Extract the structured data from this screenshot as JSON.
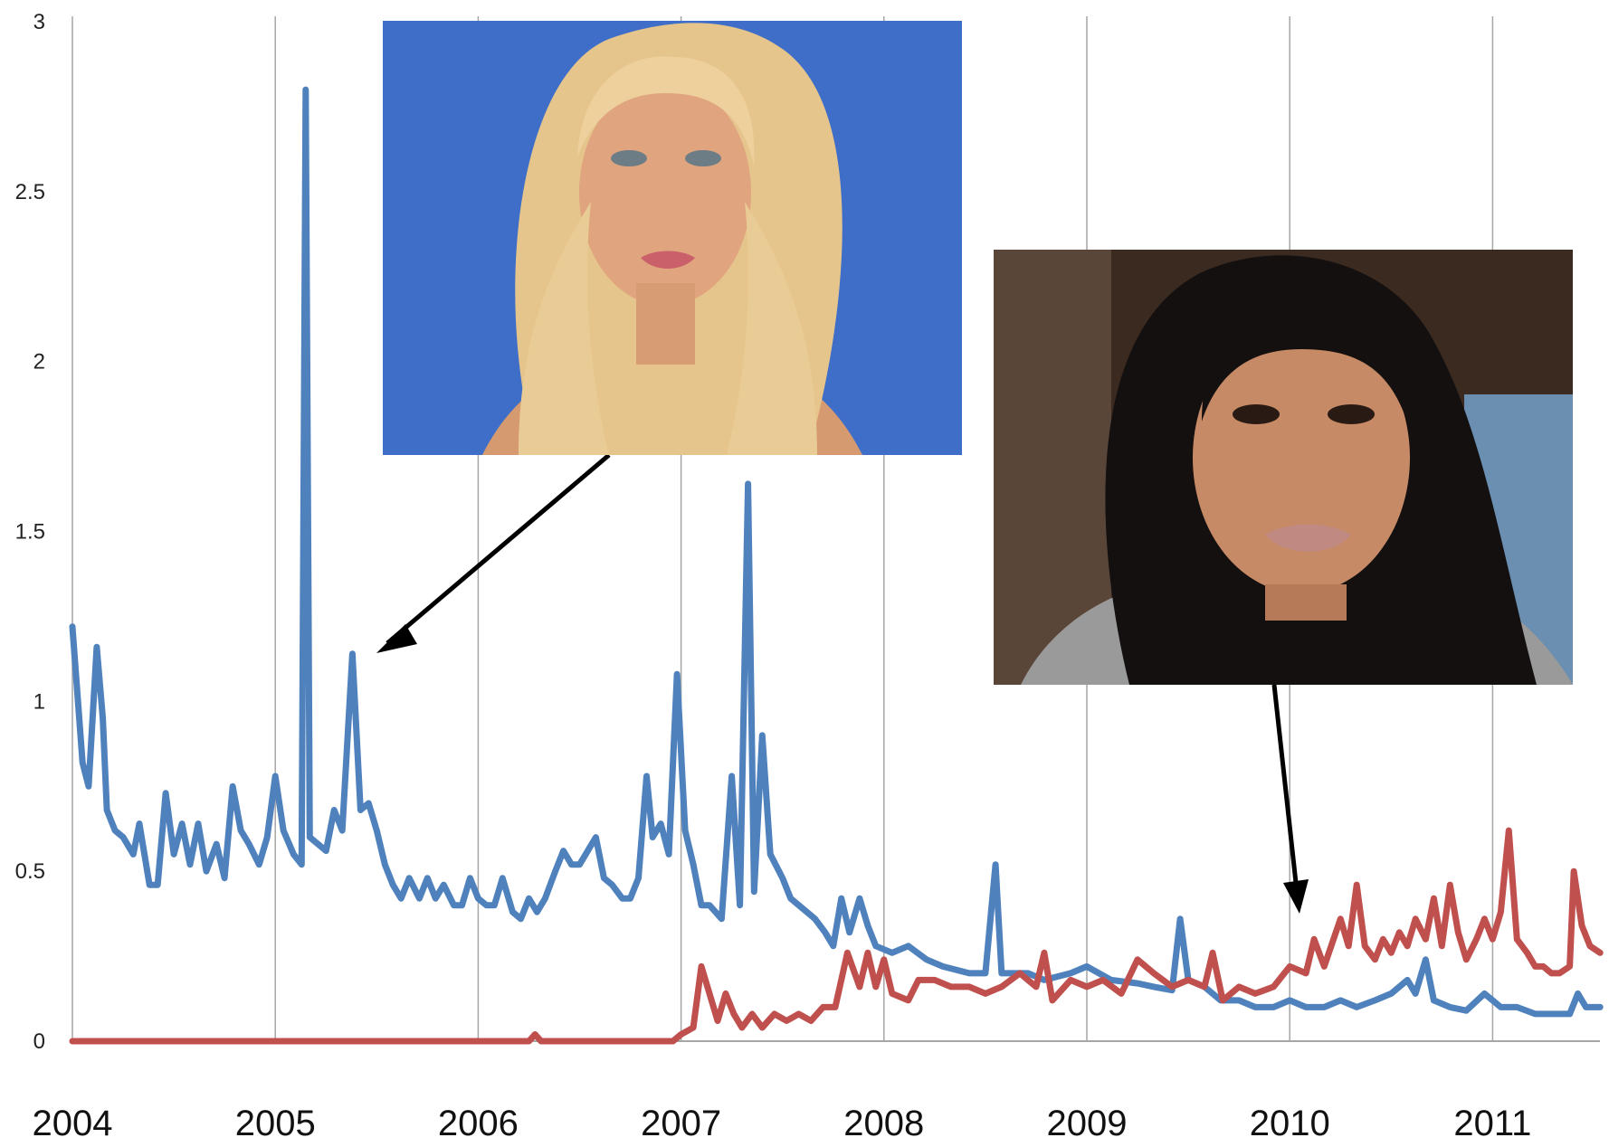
{
  "chart_data": {
    "type": "line",
    "ylim": [
      0,
      3
    ],
    "y_ticks": [
      "0",
      "0.5",
      "1",
      "1.5",
      "2",
      "2.5",
      "3"
    ],
    "x_ticks": [
      "2004",
      "2005",
      "2006",
      "2007",
      "2008",
      "2009",
      "2010",
      "2011"
    ],
    "xlim": [
      2004,
      2011.53
    ],
    "grid": "vertical",
    "series": [
      {
        "color": "#4f81bd",
        "points": [
          [
            2004.0,
            1.22
          ],
          [
            2004.05,
            0.82
          ],
          [
            2004.08,
            0.75
          ],
          [
            2004.12,
            1.16
          ],
          [
            2004.15,
            0.95
          ],
          [
            2004.17,
            0.68
          ],
          [
            2004.21,
            0.62
          ],
          [
            2004.25,
            0.6
          ],
          [
            2004.3,
            0.55
          ],
          [
            2004.33,
            0.64
          ],
          [
            2004.38,
            0.46
          ],
          [
            2004.42,
            0.46
          ],
          [
            2004.46,
            0.73
          ],
          [
            2004.5,
            0.55
          ],
          [
            2004.54,
            0.64
          ],
          [
            2004.58,
            0.52
          ],
          [
            2004.62,
            0.64
          ],
          [
            2004.66,
            0.5
          ],
          [
            2004.71,
            0.58
          ],
          [
            2004.75,
            0.48
          ],
          [
            2004.79,
            0.75
          ],
          [
            2004.83,
            0.62
          ],
          [
            2004.87,
            0.58
          ],
          [
            2004.92,
            0.52
          ],
          [
            2004.96,
            0.6
          ],
          [
            2005.0,
            0.78
          ],
          [
            2005.04,
            0.62
          ],
          [
            2005.09,
            0.55
          ],
          [
            2005.13,
            0.52
          ],
          [
            2005.15,
            2.8
          ],
          [
            2005.17,
            0.6
          ],
          [
            2005.21,
            0.58
          ],
          [
            2005.25,
            0.56
          ],
          [
            2005.29,
            0.68
          ],
          [
            2005.33,
            0.62
          ],
          [
            2005.38,
            1.14
          ],
          [
            2005.42,
            0.68
          ],
          [
            2005.46,
            0.7
          ],
          [
            2005.5,
            0.62
          ],
          [
            2005.54,
            0.52
          ],
          [
            2005.58,
            0.46
          ],
          [
            2005.62,
            0.42
          ],
          [
            2005.66,
            0.48
          ],
          [
            2005.71,
            0.42
          ],
          [
            2005.75,
            0.48
          ],
          [
            2005.79,
            0.42
          ],
          [
            2005.83,
            0.46
          ],
          [
            2005.88,
            0.4
          ],
          [
            2005.92,
            0.4
          ],
          [
            2005.96,
            0.48
          ],
          [
            2006.0,
            0.42
          ],
          [
            2006.04,
            0.4
          ],
          [
            2006.08,
            0.4
          ],
          [
            2006.12,
            0.48
          ],
          [
            2006.17,
            0.38
          ],
          [
            2006.21,
            0.36
          ],
          [
            2006.25,
            0.42
          ],
          [
            2006.29,
            0.38
          ],
          [
            2006.33,
            0.42
          ],
          [
            2006.38,
            0.5
          ],
          [
            2006.42,
            0.56
          ],
          [
            2006.46,
            0.52
          ],
          [
            2006.5,
            0.52
          ],
          [
            2006.54,
            0.56
          ],
          [
            2006.58,
            0.6
          ],
          [
            2006.62,
            0.48
          ],
          [
            2006.66,
            0.46
          ],
          [
            2006.71,
            0.42
          ],
          [
            2006.75,
            0.42
          ],
          [
            2006.79,
            0.48
          ],
          [
            2006.83,
            0.78
          ],
          [
            2006.86,
            0.6
          ],
          [
            2006.9,
            0.64
          ],
          [
            2006.94,
            0.55
          ],
          [
            2006.98,
            1.08
          ],
          [
            2007.02,
            0.62
          ],
          [
            2007.06,
            0.52
          ],
          [
            2007.1,
            0.4
          ],
          [
            2007.14,
            0.4
          ],
          [
            2007.2,
            0.36
          ],
          [
            2007.25,
            0.78
          ],
          [
            2007.29,
            0.4
          ],
          [
            2007.33,
            1.64
          ],
          [
            2007.36,
            0.44
          ],
          [
            2007.4,
            0.9
          ],
          [
            2007.44,
            0.55
          ],
          [
            2007.5,
            0.48
          ],
          [
            2007.54,
            0.42
          ],
          [
            2007.58,
            0.4
          ],
          [
            2007.62,
            0.38
          ],
          [
            2007.66,
            0.36
          ],
          [
            2007.71,
            0.32
          ],
          [
            2007.75,
            0.28
          ],
          [
            2007.79,
            0.42
          ],
          [
            2007.83,
            0.32
          ],
          [
            2007.88,
            0.42
          ],
          [
            2007.92,
            0.34
          ],
          [
            2007.96,
            0.28
          ],
          [
            2008.04,
            0.26
          ],
          [
            2008.12,
            0.28
          ],
          [
            2008.21,
            0.24
          ],
          [
            2008.29,
            0.22
          ],
          [
            2008.42,
            0.2
          ],
          [
            2008.5,
            0.2
          ],
          [
            2008.55,
            0.52
          ],
          [
            2008.58,
            0.2
          ],
          [
            2008.71,
            0.2
          ],
          [
            2008.79,
            0.18
          ],
          [
            2008.92,
            0.2
          ],
          [
            2009.0,
            0.22
          ],
          [
            2009.12,
            0.18
          ],
          [
            2009.25,
            0.17
          ],
          [
            2009.33,
            0.16
          ],
          [
            2009.42,
            0.15
          ],
          [
            2009.46,
            0.36
          ],
          [
            2009.5,
            0.18
          ],
          [
            2009.58,
            0.16
          ],
          [
            2009.66,
            0.12
          ],
          [
            2009.75,
            0.12
          ],
          [
            2009.83,
            0.1
          ],
          [
            2009.92,
            0.1
          ],
          [
            2010.0,
            0.12
          ],
          [
            2010.08,
            0.1
          ],
          [
            2010.17,
            0.1
          ],
          [
            2010.25,
            0.12
          ],
          [
            2010.33,
            0.1
          ],
          [
            2010.42,
            0.12
          ],
          [
            2010.5,
            0.14
          ],
          [
            2010.58,
            0.18
          ],
          [
            2010.62,
            0.14
          ],
          [
            2010.67,
            0.24
          ],
          [
            2010.71,
            0.12
          ],
          [
            2010.79,
            0.1
          ],
          [
            2010.87,
            0.09
          ],
          [
            2010.96,
            0.14
          ],
          [
            2011.04,
            0.1
          ],
          [
            2011.12,
            0.1
          ],
          [
            2011.21,
            0.08
          ],
          [
            2011.29,
            0.08
          ],
          [
            2011.38,
            0.08
          ],
          [
            2011.42,
            0.14
          ],
          [
            2011.46,
            0.1
          ],
          [
            2011.53,
            0.1
          ]
        ]
      },
      {
        "color": "#c0504d",
        "points": [
          [
            2004.0,
            0.0
          ],
          [
            2006.25,
            0.0
          ],
          [
            2006.28,
            0.02
          ],
          [
            2006.31,
            0.0
          ],
          [
            2006.96,
            0.0
          ],
          [
            2007.0,
            0.02
          ],
          [
            2007.06,
            0.04
          ],
          [
            2007.1,
            0.22
          ],
          [
            2007.14,
            0.14
          ],
          [
            2007.18,
            0.06
          ],
          [
            2007.22,
            0.14
          ],
          [
            2007.26,
            0.08
          ],
          [
            2007.3,
            0.04
          ],
          [
            2007.35,
            0.08
          ],
          [
            2007.4,
            0.04
          ],
          [
            2007.46,
            0.08
          ],
          [
            2007.52,
            0.06
          ],
          [
            2007.58,
            0.08
          ],
          [
            2007.64,
            0.06
          ],
          [
            2007.7,
            0.1
          ],
          [
            2007.76,
            0.1
          ],
          [
            2007.82,
            0.26
          ],
          [
            2007.88,
            0.16
          ],
          [
            2007.92,
            0.26
          ],
          [
            2007.96,
            0.16
          ],
          [
            2008.0,
            0.24
          ],
          [
            2008.04,
            0.14
          ],
          [
            2008.12,
            0.12
          ],
          [
            2008.17,
            0.18
          ],
          [
            2008.25,
            0.18
          ],
          [
            2008.33,
            0.16
          ],
          [
            2008.42,
            0.16
          ],
          [
            2008.5,
            0.14
          ],
          [
            2008.58,
            0.16
          ],
          [
            2008.67,
            0.2
          ],
          [
            2008.75,
            0.16
          ],
          [
            2008.79,
            0.26
          ],
          [
            2008.83,
            0.12
          ],
          [
            2008.92,
            0.18
          ],
          [
            2009.0,
            0.16
          ],
          [
            2009.08,
            0.18
          ],
          [
            2009.17,
            0.14
          ],
          [
            2009.25,
            0.24
          ],
          [
            2009.33,
            0.2
          ],
          [
            2009.42,
            0.16
          ],
          [
            2009.5,
            0.18
          ],
          [
            2009.58,
            0.16
          ],
          [
            2009.62,
            0.26
          ],
          [
            2009.67,
            0.12
          ],
          [
            2009.75,
            0.16
          ],
          [
            2009.83,
            0.14
          ],
          [
            2009.92,
            0.16
          ],
          [
            2010.0,
            0.22
          ],
          [
            2010.08,
            0.2
          ],
          [
            2010.12,
            0.3
          ],
          [
            2010.17,
            0.22
          ],
          [
            2010.25,
            0.36
          ],
          [
            2010.29,
            0.28
          ],
          [
            2010.33,
            0.46
          ],
          [
            2010.37,
            0.28
          ],
          [
            2010.42,
            0.24
          ],
          [
            2010.46,
            0.3
          ],
          [
            2010.5,
            0.26
          ],
          [
            2010.54,
            0.32
          ],
          [
            2010.58,
            0.28
          ],
          [
            2010.62,
            0.36
          ],
          [
            2010.67,
            0.3
          ],
          [
            2010.71,
            0.42
          ],
          [
            2010.75,
            0.28
          ],
          [
            2010.79,
            0.46
          ],
          [
            2010.83,
            0.32
          ],
          [
            2010.87,
            0.24
          ],
          [
            2010.92,
            0.3
          ],
          [
            2010.96,
            0.36
          ],
          [
            2011.0,
            0.3
          ],
          [
            2011.04,
            0.38
          ],
          [
            2011.08,
            0.62
          ],
          [
            2011.12,
            0.3
          ],
          [
            2011.17,
            0.26
          ],
          [
            2011.21,
            0.22
          ],
          [
            2011.25,
            0.22
          ],
          [
            2011.29,
            0.2
          ],
          [
            2011.33,
            0.2
          ],
          [
            2011.38,
            0.22
          ],
          [
            2011.4,
            0.5
          ],
          [
            2011.44,
            0.34
          ],
          [
            2011.48,
            0.28
          ],
          [
            2011.53,
            0.26
          ]
        ]
      }
    ]
  }
}
